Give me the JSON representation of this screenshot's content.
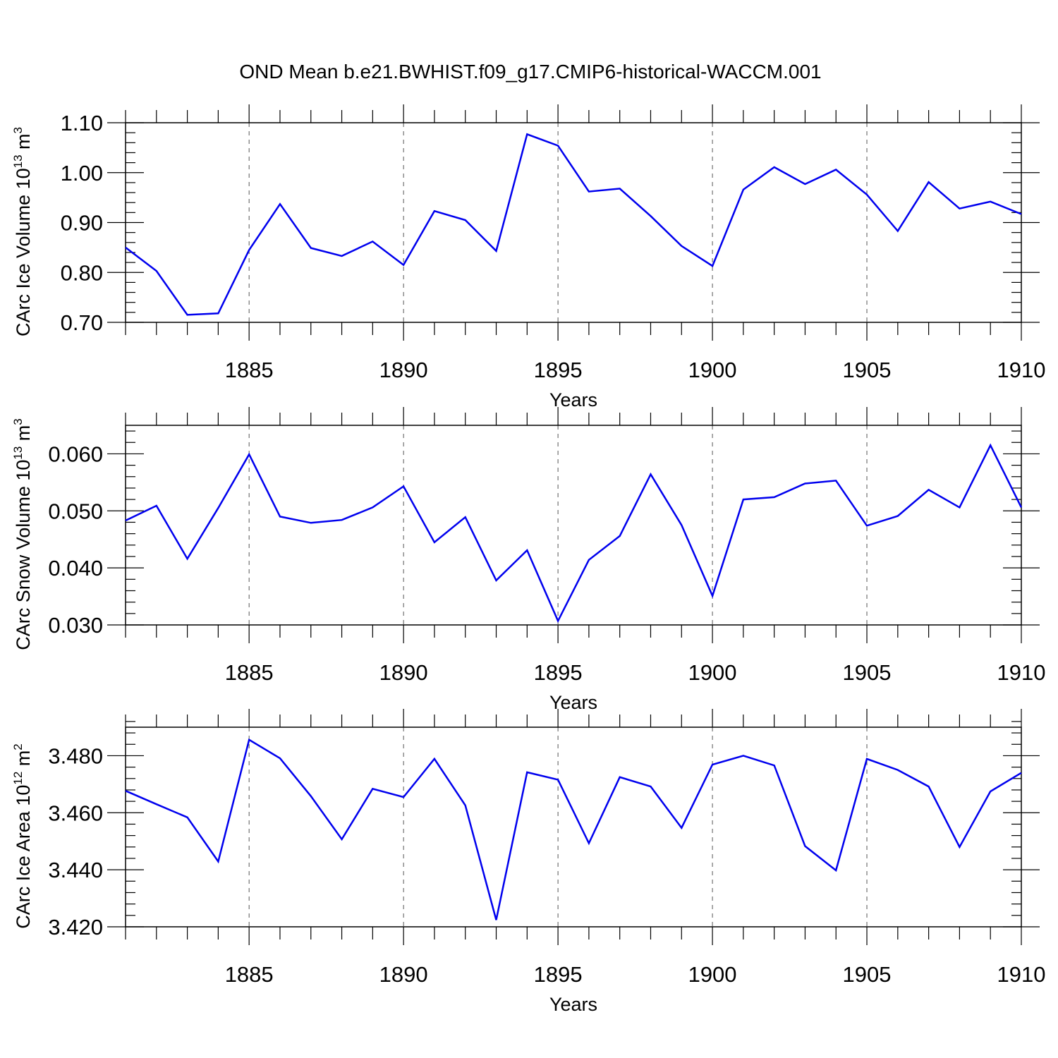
{
  "title": "OND Mean b.e21.BWHIST.f09_g17.CMIP6-historical-WACCM.001",
  "chart_data": [
    {
      "type": "line",
      "title": "OND Mean b.e21.BWHIST.f09_g17.CMIP6-historical-WACCM.001",
      "ylabel": "CArc Ice Volume 10",
      "ylabel_exp": "13",
      "ylabel_unit": "m",
      "ylabel_unit_exp": "3",
      "xlabel": "Years",
      "xlim": [
        1881,
        1910
      ],
      "ylim": [
        0.7,
        1.1
      ],
      "yticks": [
        0.7,
        0.8,
        0.9,
        1.0,
        1.1
      ],
      "ytick_labels": [
        "0.70",
        "0.80",
        "0.90",
        "1.00",
        "1.10"
      ],
      "xticks": [
        1885,
        1890,
        1895,
        1900,
        1905,
        1910
      ],
      "xtick_labels": [
        "1885",
        "1890",
        "1895",
        "1900",
        "1905",
        "1910"
      ],
      "grid": "vertical-dashed",
      "color": "#0000ee",
      "x": [
        1881,
        1882,
        1883,
        1884,
        1885,
        1886,
        1887,
        1888,
        1889,
        1890,
        1891,
        1892,
        1893,
        1894,
        1895,
        1896,
        1897,
        1898,
        1899,
        1900,
        1901,
        1902,
        1903,
        1904,
        1905,
        1906,
        1907,
        1908,
        1909,
        1910
      ],
      "values": [
        0.85,
        0.803,
        0.715,
        0.718,
        0.845,
        0.937,
        0.849,
        0.833,
        0.862,
        0.815,
        0.923,
        0.905,
        0.843,
        1.077,
        1.054,
        0.962,
        0.968,
        0.913,
        0.853,
        0.813,
        0.966,
        1.011,
        0.977,
        1.006,
        0.956,
        0.883,
        0.981,
        0.928,
        0.942,
        0.917
      ]
    },
    {
      "type": "line",
      "ylabel": "CArc Snow Volume 10",
      "ylabel_exp": "13",
      "ylabel_unit": "m",
      "ylabel_unit_exp": "3",
      "xlabel": "Years",
      "xlim": [
        1881,
        1910
      ],
      "ylim": [
        0.03,
        0.065
      ],
      "yticks": [
        0.03,
        0.04,
        0.05,
        0.06
      ],
      "ytick_labels": [
        "0.030",
        "0.040",
        "0.050",
        "0.060"
      ],
      "xticks": [
        1885,
        1890,
        1895,
        1900,
        1905,
        1910
      ],
      "xtick_labels": [
        "1885",
        "1890",
        "1895",
        "1900",
        "1905",
        "1910"
      ],
      "grid": "vertical-dashed",
      "color": "#0000ee",
      "x": [
        1881,
        1882,
        1883,
        1884,
        1885,
        1886,
        1887,
        1888,
        1889,
        1890,
        1891,
        1892,
        1893,
        1894,
        1895,
        1896,
        1897,
        1898,
        1899,
        1900,
        1901,
        1902,
        1903,
        1904,
        1905,
        1906,
        1907,
        1908,
        1909,
        1910
      ],
      "values": [
        0.0483,
        0.0509,
        0.0416,
        0.0505,
        0.0599,
        0.049,
        0.0479,
        0.0484,
        0.0506,
        0.0543,
        0.0445,
        0.0489,
        0.0378,
        0.0431,
        0.0307,
        0.0414,
        0.0456,
        0.0564,
        0.0475,
        0.0351,
        0.052,
        0.0524,
        0.0548,
        0.0553,
        0.0474,
        0.0491,
        0.0537,
        0.0506,
        0.0615,
        0.0506
      ]
    },
    {
      "type": "line",
      "ylabel": "CArc Ice Area 10",
      "ylabel_exp": "12",
      "ylabel_unit": "m",
      "ylabel_unit_exp": "2",
      "xlabel": "Years",
      "xlim": [
        1881,
        1910
      ],
      "ylim": [
        3.42,
        3.49
      ],
      "yticks": [
        3.42,
        3.44,
        3.46,
        3.48
      ],
      "ytick_labels": [
        "3.420",
        "3.440",
        "3.460",
        "3.480"
      ],
      "xticks": [
        1885,
        1890,
        1895,
        1900,
        1905,
        1910
      ],
      "xtick_labels": [
        "1885",
        "1890",
        "1895",
        "1900",
        "1905",
        "1910"
      ],
      "grid": "vertical-dashed",
      "color": "#0000ee",
      "x": [
        1881,
        1882,
        1883,
        1884,
        1885,
        1886,
        1887,
        1888,
        1889,
        1890,
        1891,
        1892,
        1893,
        1894,
        1895,
        1896,
        1897,
        1898,
        1899,
        1900,
        1901,
        1902,
        1903,
        1904,
        1905,
        1906,
        1907,
        1908,
        1909,
        1910
      ],
      "values": [
        3.4677,
        3.463,
        3.4584,
        3.4429,
        3.4856,
        3.4791,
        3.4658,
        3.4507,
        3.4684,
        3.4655,
        3.4789,
        3.4626,
        3.4224,
        3.4742,
        3.4716,
        3.4493,
        3.4725,
        3.4692,
        3.4547,
        3.4769,
        3.48,
        3.4766,
        3.4483,
        3.4398,
        3.4789,
        3.475,
        3.4692,
        3.448,
        3.4675,
        3.474
      ]
    }
  ]
}
